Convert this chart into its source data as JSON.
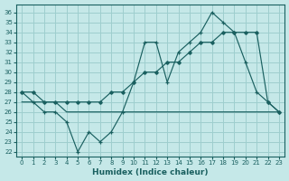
{
  "xlabel": "Humidex (Indice chaleur)",
  "bg_color": "#c5e8e8",
  "grid_color": "#9ecece",
  "line_color": "#1a6060",
  "xlim": [
    -0.5,
    23.5
  ],
  "ylim": [
    21.5,
    36.8
  ],
  "yticks": [
    22,
    23,
    24,
    25,
    26,
    27,
    28,
    29,
    30,
    31,
    32,
    33,
    34,
    35,
    36
  ],
  "xticks": [
    0,
    1,
    2,
    3,
    4,
    5,
    6,
    7,
    8,
    9,
    10,
    11,
    12,
    13,
    14,
    15,
    16,
    17,
    18,
    19,
    20,
    21,
    22,
    23
  ],
  "series_flat": [
    27,
    27,
    27,
    27,
    26,
    26,
    26,
    26,
    26,
    26,
    26,
    26,
    26,
    26,
    26,
    26,
    26,
    26,
    26,
    26,
    26,
    26,
    26,
    26
  ],
  "series_diag": [
    28,
    28,
    27,
    27,
    27,
    27,
    27,
    27,
    28,
    28,
    29,
    30,
    30,
    31,
    31,
    32,
    33,
    33,
    34,
    34,
    34,
    34,
    27,
    26
  ],
  "series_jagged": [
    28,
    27,
    26,
    26,
    25,
    22,
    24,
    23,
    24,
    26,
    29,
    33,
    33,
    29,
    32,
    33,
    34,
    36,
    35,
    34,
    31,
    28,
    27,
    26
  ]
}
